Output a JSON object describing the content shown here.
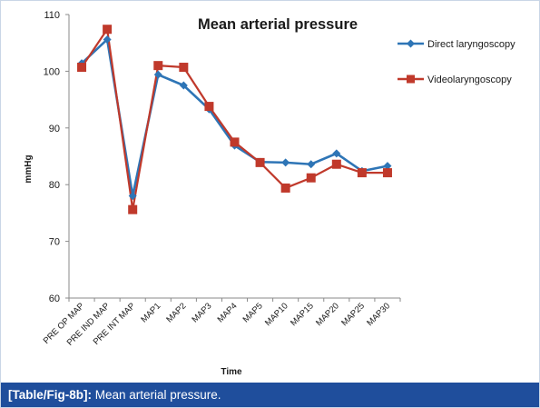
{
  "chart_data": {
    "type": "line",
    "title": "Mean arterial pressure",
    "xlabel": "Time",
    "ylabel": "mmHg",
    "ylim": [
      60,
      110
    ],
    "yticks": [
      60,
      70,
      80,
      90,
      100,
      110
    ],
    "grid": false,
    "legend_position": "top-right",
    "categories": [
      "PRE OP MAP",
      "PRE IND MAP",
      "PRE INT MAP",
      "MAP1",
      "MAP2",
      "MAP3",
      "MAP4",
      "MAP5",
      "MAP10",
      "MAP15",
      "MAP20",
      "MAP25",
      "MAP30"
    ],
    "series": [
      {
        "name": "Direct laryngoscopy",
        "color": "#2e75b6",
        "marker": "diamond",
        "values": [
          101.4,
          105.6,
          78.0,
          99.4,
          97.5,
          93.3,
          86.9,
          84.0,
          83.9,
          83.6,
          85.5,
          82.4,
          83.3
        ]
      },
      {
        "name": "Videolaryngoscopy",
        "color": "#c0392b",
        "marker": "square",
        "values": [
          100.7,
          107.4,
          75.6,
          101.0,
          100.7,
          93.8,
          87.5,
          83.9,
          79.4,
          81.2,
          83.6,
          82.1,
          82.1
        ]
      }
    ]
  },
  "caption": {
    "label": "[Table/Fig-8b]:",
    "text": " Mean arterial pressure."
  }
}
